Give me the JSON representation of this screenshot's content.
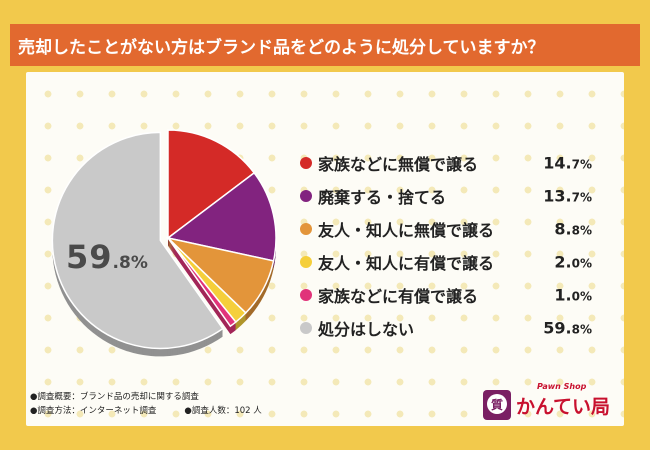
{
  "title": "売却したことがない方はブランド品をどのように処分していますか？",
  "chart_data": {
    "type": "pie",
    "title": "売却したことがない方はブランド品をどのように処分していますか？",
    "unit": "%",
    "slices": [
      {
        "label": "家族などに無償で譲る",
        "value": 14.7,
        "value_main": "14.",
        "value_sub": "7%",
        "color": "#d42a27"
      },
      {
        "label": "廃棄する・捨てる",
        "value": 13.7,
        "value_main": "13.",
        "value_sub": "7%",
        "color": "#82237f"
      },
      {
        "label": "友人・知人に無償で譲る",
        "value": 8.8,
        "value_main": "8.",
        "value_sub": "8%",
        "color": "#e3953a"
      },
      {
        "label": "友人・知人に有償で譲る",
        "value": 2.0,
        "value_main": "2.",
        "value_sub": "0%",
        "color": "#f5cf3b"
      },
      {
        "label": "家族などに有償で譲る",
        "value": 1.0,
        "value_main": "1.",
        "value_sub": "0%",
        "color": "#e1337a"
      },
      {
        "label": "処分はしない",
        "value": 59.8,
        "value_main": "59.",
        "value_sub": "8%",
        "color": "#c9c9c9"
      }
    ],
    "center_label_main": "59",
    "center_label_sub": ".8%"
  },
  "footer": {
    "overview": "●調査概要：ブランド品の売却に関する調査",
    "method": "●調査方法：インターネット調査",
    "respondents": "●調査人数：102 人"
  },
  "logo": {
    "tagline": "Pawn Shop",
    "name": "かんてい局",
    "mark": "質"
  },
  "colors": {
    "background": "#f2c94c",
    "title_bar": "#e2692f",
    "panel": "#fdfcf6"
  }
}
